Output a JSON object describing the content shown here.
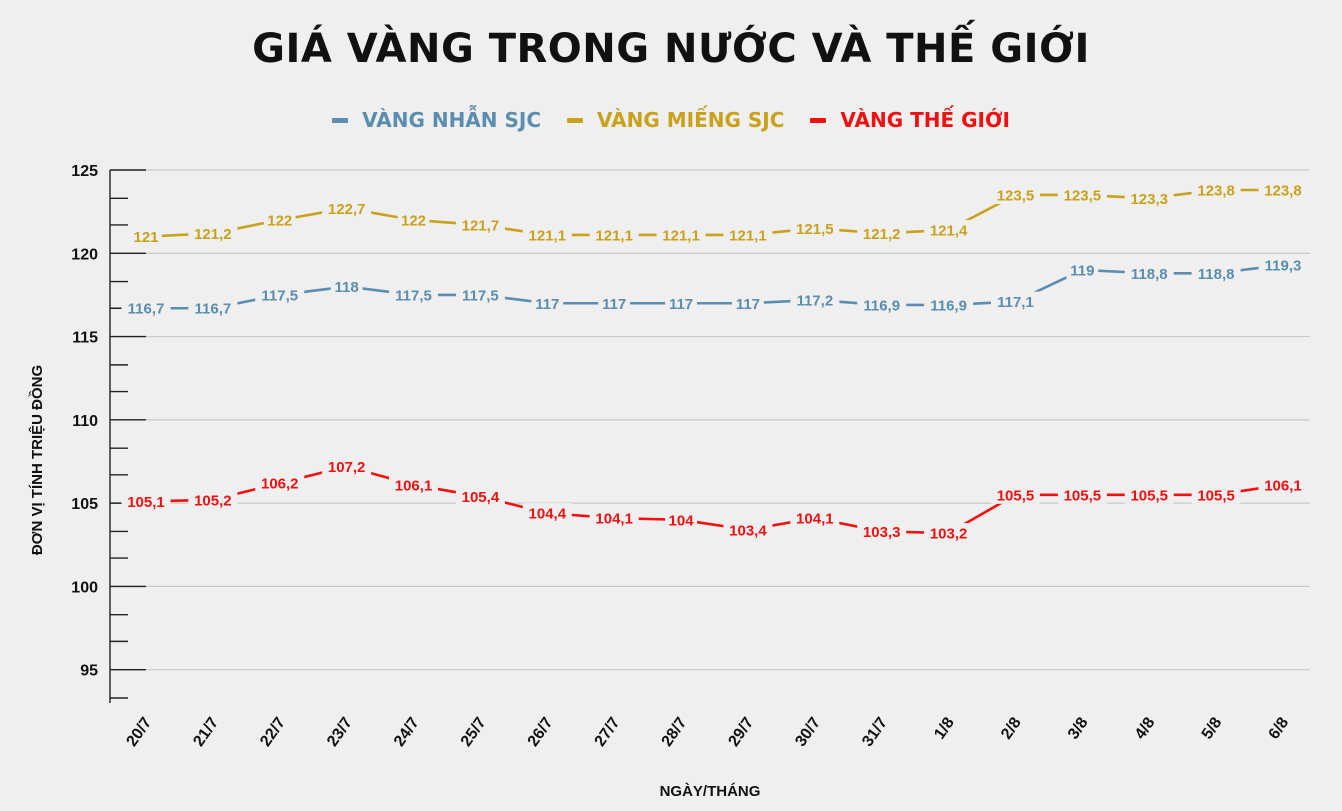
{
  "chart_data": {
    "type": "line",
    "title": "GIÁ VÀNG TRONG NƯỚC VÀ THẾ GIỚI",
    "xlabel": "NGÀY/THÁNG",
    "ylabel": "ĐƠN VỊ TÍNH TRIỆU ĐỒNG",
    "categories": [
      "20/7",
      "21/7",
      "22/7",
      "23/7",
      "24/7",
      "25/7",
      "26/7",
      "27/7",
      "28/7",
      "29/7",
      "30/7",
      "31/7",
      "1/8",
      "2/8",
      "3/8",
      "4/8",
      "5/8",
      "6/8"
    ],
    "ylim": [
      93,
      125
    ],
    "yticks": [
      95,
      100,
      105,
      110,
      115,
      120,
      125
    ],
    "yticks_minor": [
      93.3,
      96.7,
      98.3,
      101.7,
      103.3,
      106.7,
      108.3,
      111.7,
      113.3,
      116.7,
      118.3,
      121.7,
      123.3
    ],
    "grid": true,
    "legend_position": "top-center",
    "series": [
      {
        "name": "VÀNG NHẪN SJC",
        "color": "#5b8db0",
        "values": [
          116.7,
          116.7,
          117.5,
          118,
          117.5,
          117.5,
          117,
          117,
          117,
          117,
          117.2,
          116.9,
          116.9,
          117.1,
          119,
          118.8,
          118.8,
          119.3
        ],
        "labels": [
          "116,7",
          "116,7",
          "117,5",
          "118",
          "117,5",
          "117,5",
          "117",
          "117",
          "117",
          "117",
          "117,2",
          "116,9",
          "116,9",
          "117,1",
          "119",
          "118,8",
          "118,8",
          "119,3"
        ]
      },
      {
        "name": "VÀNG MIẾNG SJC",
        "color": "#c9a11b",
        "values": [
          121,
          121.2,
          122,
          122.7,
          122,
          121.7,
          121.1,
          121.1,
          121.1,
          121.1,
          121.5,
          121.2,
          121.4,
          123.5,
          123.5,
          123.3,
          123.8,
          123.8
        ],
        "labels": [
          "121",
          "121,2",
          "122",
          "122,7",
          "122",
          "121,7",
          "121,1",
          "121,1",
          "121,1",
          "121,1",
          "121,5",
          "121,2",
          "121,4",
          "123,5",
          "123,5",
          "123,3",
          "123,8",
          "123,8"
        ]
      },
      {
        "name": "VÀNG THẾ GIỚI",
        "color": "#f01010",
        "values": [
          105.1,
          105.2,
          106.2,
          107.2,
          106.1,
          105.4,
          104.4,
          104.1,
          104,
          103.4,
          104.1,
          103.3,
          103.2,
          105.5,
          105.5,
          105.5,
          105.5,
          106.1
        ],
        "labels": [
          "105,1",
          "105,2",
          "106,2",
          "107,2",
          "106,1",
          "105,4",
          "104,4",
          "104,1",
          "104",
          "103,4",
          "104,1",
          "103,3",
          "103,2",
          "105,5",
          "105,5",
          "105,5",
          "105,5",
          "106,1"
        ]
      }
    ]
  }
}
